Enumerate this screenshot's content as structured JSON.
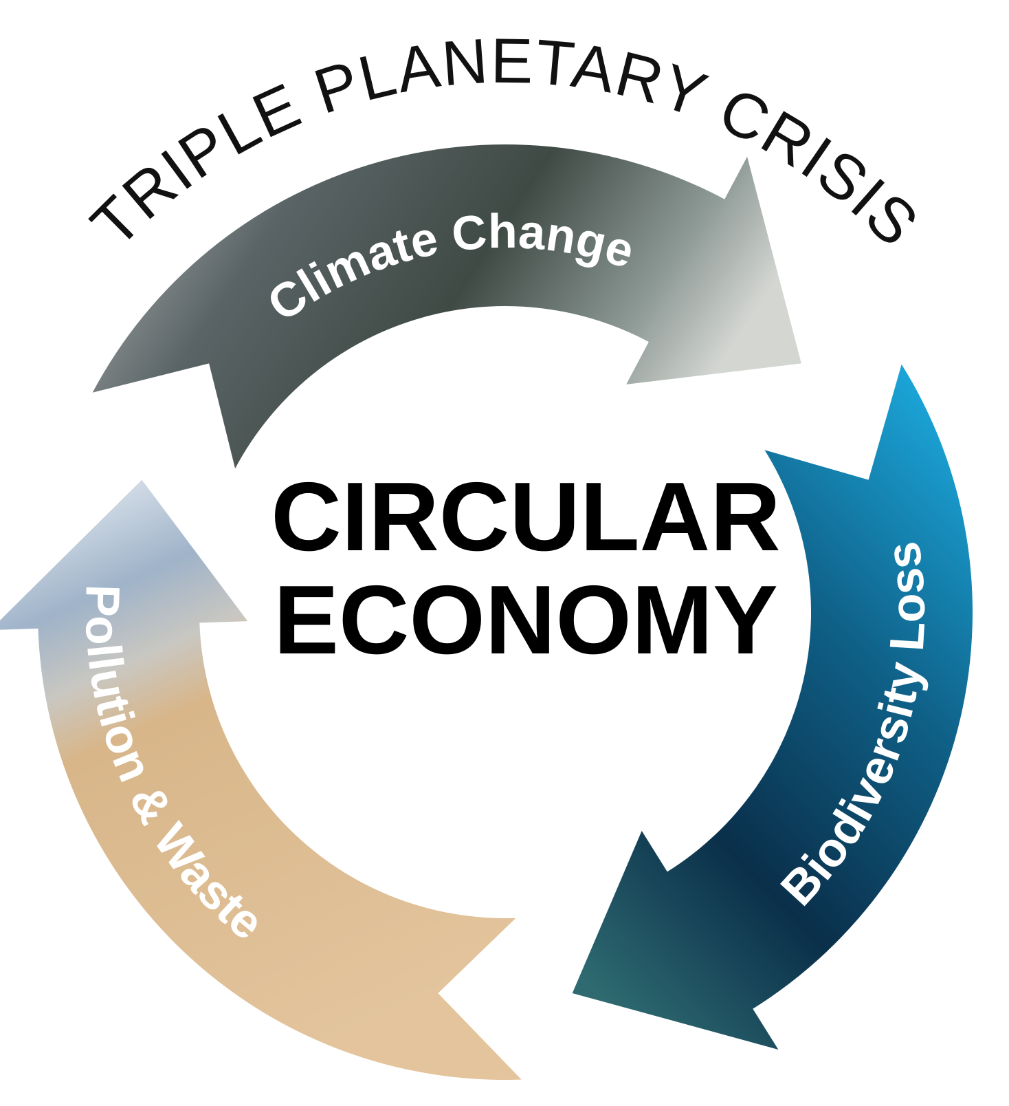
{
  "title": "TRIPLE PLANETARY CRISIS",
  "center": {
    "lines": [
      "CIRCULAR",
      "ECONOMY"
    ]
  },
  "arrows": [
    {
      "label": "Climate Change"
    },
    {
      "label": "Biodiversity Loss"
    },
    {
      "label": "Pollution & Waste"
    }
  ]
}
